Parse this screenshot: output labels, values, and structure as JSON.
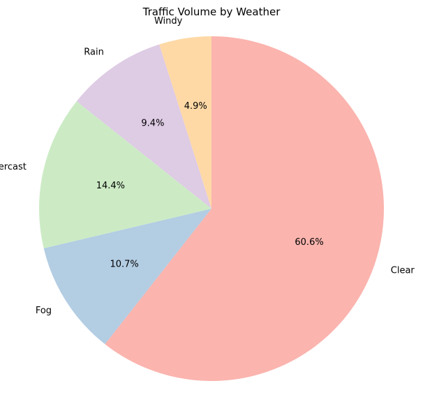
{
  "chart_data": {
    "type": "pie",
    "title": "Traffic Volume by Weather",
    "start_angle_deg": 90,
    "direction": "clockwise",
    "slices": [
      {
        "label": "Clear",
        "value": 60.6,
        "pct_text": "60.6%",
        "color": "#fbb4ae"
      },
      {
        "label": "Fog",
        "value": 10.7,
        "pct_text": "10.7%",
        "color": "#b3cde3"
      },
      {
        "label": "Overcast",
        "value": 14.4,
        "pct_text": "14.4%",
        "color": "#ccebc5"
      },
      {
        "label": "Rain",
        "value": 9.4,
        "pct_text": "9.4%",
        "color": "#decbe4"
      },
      {
        "label": "Windy",
        "value": 4.9,
        "pct_text": "4.9%",
        "color": "#fed9a6"
      }
    ]
  }
}
